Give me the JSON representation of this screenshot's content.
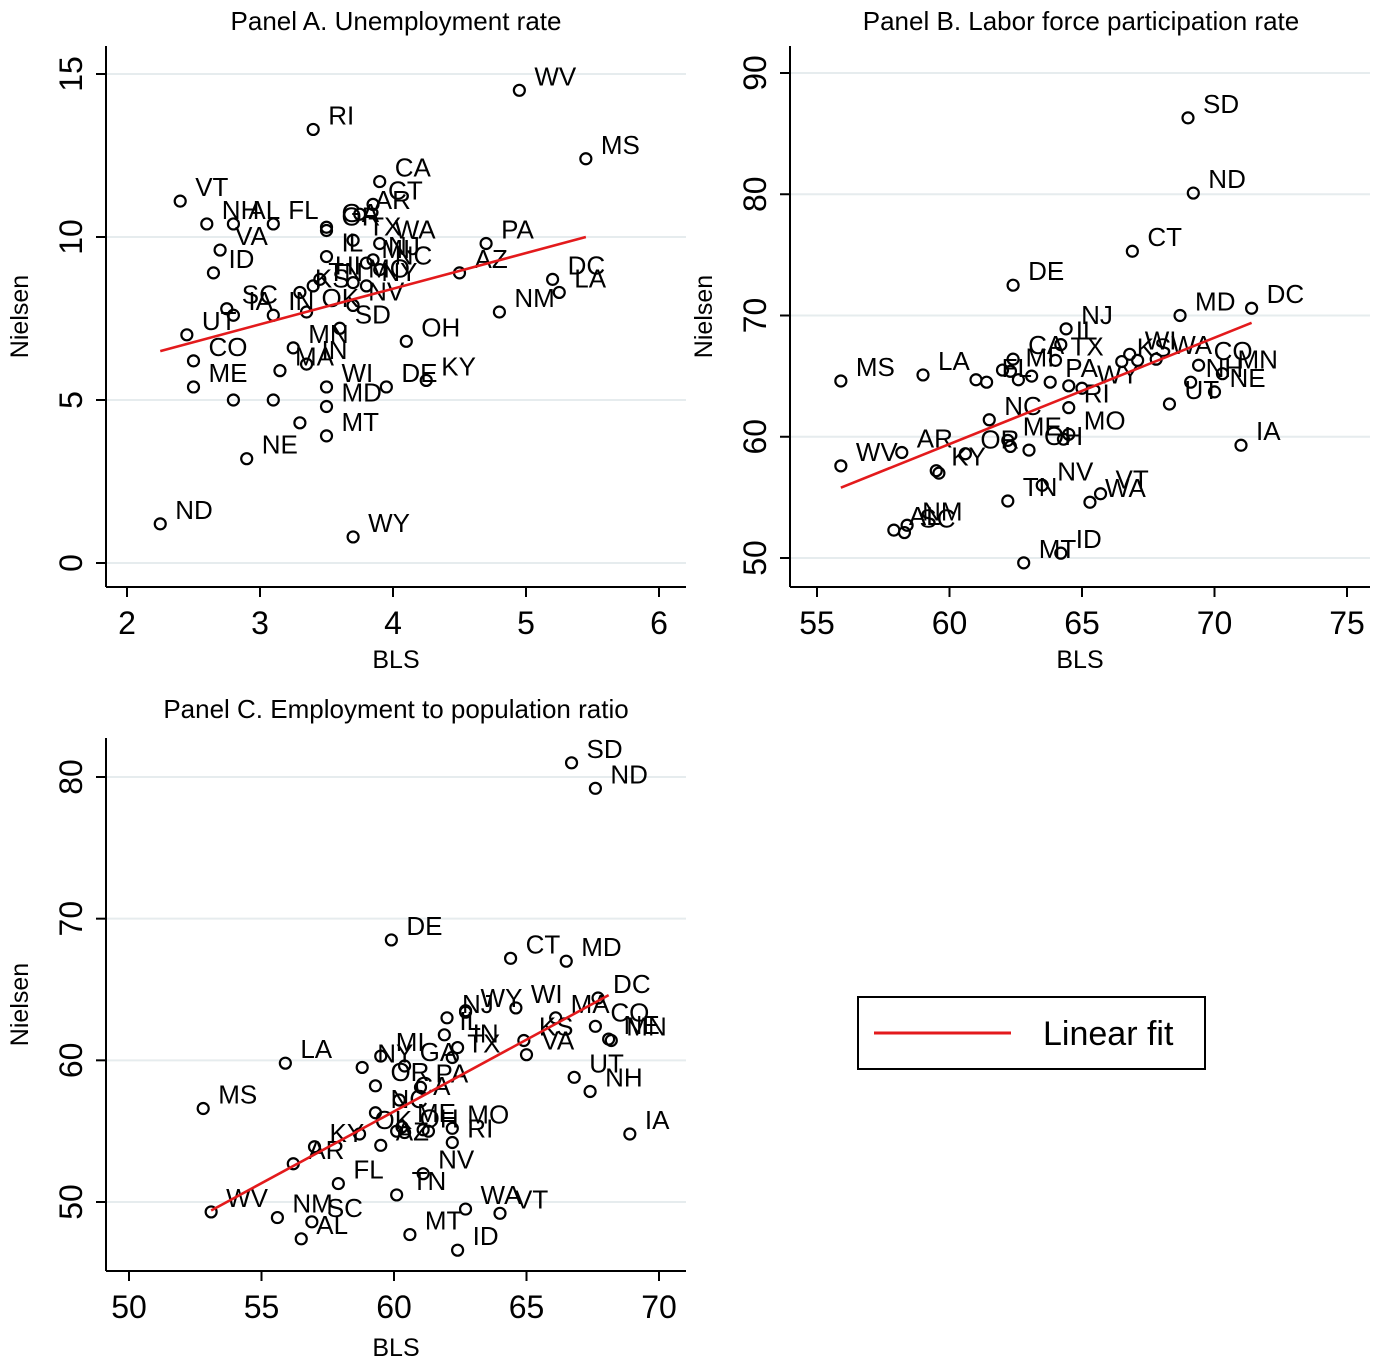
{
  "chart_data": [
    {
      "type": "scatter",
      "title": "Panel A. Unemployment rate",
      "xlabel": "BLS",
      "ylabel": "Nielsen",
      "xlim": [
        2,
        6
      ],
      "ylim": [
        0,
        15
      ],
      "xticks": [
        "2",
        "3",
        "4",
        "5",
        "6"
      ],
      "yticks": [
        "0",
        "5",
        "10",
        "15"
      ],
      "grid": "horizontal",
      "points": [
        {
          "label": "WV",
          "x": 4.95,
          "y": 14.5
        },
        {
          "label": "RI",
          "x": 3.4,
          "y": 13.3
        },
        {
          "label": "MS",
          "x": 5.45,
          "y": 12.4
        },
        {
          "label": "CA",
          "x": 3.9,
          "y": 11.7
        },
        {
          "label": "VT",
          "x": 2.4,
          "y": 11.1
        },
        {
          "label": "CT",
          "x": 3.85,
          "y": 11.0
        },
        {
          "label": "NH",
          "x": 2.6,
          "y": 10.4
        },
        {
          "label": "FL",
          "x": 3.1,
          "y": 10.4
        },
        {
          "label": "GA",
          "x": 3.5,
          "y": 10.3
        },
        {
          "label": "AR",
          "x": 3.75,
          "y": 10.7
        },
        {
          "label": "AL",
          "x": 2.8,
          "y": 10.4
        },
        {
          "label": "OR",
          "x": 3.5,
          "y": 10.2
        },
        {
          "label": "PA",
          "x": 4.7,
          "y": 9.8
        },
        {
          "label": "TX",
          "x": 3.7,
          "y": 9.9
        },
        {
          "label": "WA",
          "x": 3.9,
          "y": 9.8
        },
        {
          "label": "VA",
          "x": 2.7,
          "y": 9.6
        },
        {
          "label": "AZ",
          "x": 4.5,
          "y": 8.9
        },
        {
          "label": "IL",
          "x": 3.5,
          "y": 9.4
        },
        {
          "label": "NJ",
          "x": 3.85,
          "y": 9.3
        },
        {
          "label": "MI",
          "x": 3.8,
          "y": 9.2
        },
        {
          "label": "NC",
          "x": 3.9,
          "y": 9.0
        },
        {
          "label": "DC",
          "x": 5.2,
          "y": 8.7
        },
        {
          "label": "LA",
          "x": 5.25,
          "y": 8.3
        },
        {
          "label": "NY",
          "x": 3.8,
          "y": 8.5
        },
        {
          "label": "MO",
          "x": 3.7,
          "y": 8.6
        },
        {
          "label": "ID",
          "x": 2.65,
          "y": 8.9
        },
        {
          "label": "KS",
          "x": 3.3,
          "y": 8.3
        },
        {
          "label": "HI",
          "x": 3.45,
          "y": 8.7
        },
        {
          "label": "NM",
          "x": 4.8,
          "y": 7.7
        },
        {
          "label": "IA",
          "x": 2.8,
          "y": 7.6
        },
        {
          "label": "SC",
          "x": 2.75,
          "y": 7.8
        },
        {
          "label": "TN",
          "x": 3.4,
          "y": 8.5
        },
        {
          "label": "IN",
          "x": 3.1,
          "y": 7.6
        },
        {
          "label": "NV",
          "x": 3.7,
          "y": 7.9
        },
        {
          "label": "UT",
          "x": 2.45,
          "y": 7.0
        },
        {
          "label": "OK",
          "x": 3.35,
          "y": 7.7
        },
        {
          "label": "OH",
          "x": 4.1,
          "y": 6.8
        },
        {
          "label": "SD",
          "x": 3.6,
          "y": 7.2
        },
        {
          "label": "CO",
          "x": 2.5,
          "y": 6.2
        },
        {
          "label": "MN",
          "x": 3.25,
          "y": 6.6
        },
        {
          "label": "KY",
          "x": 4.25,
          "y": 5.6
        },
        {
          "label": "DE",
          "x": 3.95,
          "y": 5.4
        },
        {
          "label": "MA",
          "x": 3.15,
          "y": 5.9
        },
        {
          "label": "IN",
          "x": 3.35,
          "y": 6.1
        },
        {
          "label": "WI",
          "x": 3.5,
          "y": 5.4
        },
        {
          "label": "MD",
          "x": 3.5,
          "y": 4.8
        },
        {
          "label": "ME",
          "x": 2.5,
          "y": 5.4
        },
        {
          "label": "MT",
          "x": 3.5,
          "y": 3.9
        },
        {
          "label": "NE",
          "x": 2.9,
          "y": 3.2
        },
        {
          "label": "ND",
          "x": 2.25,
          "y": 1.2
        },
        {
          "label": "WY",
          "x": 3.7,
          "y": 0.8
        },
        {
          "label": "",
          "x": 2.8,
          "y": 5.0
        },
        {
          "label": "",
          "x": 3.1,
          "y": 5.0
        },
        {
          "label": "",
          "x": 3.3,
          "y": 4.3
        }
      ],
      "fit_line": {
        "name": "Linear fit",
        "x": [
          2.25,
          5.45
        ],
        "y": [
          6.5,
          10.0
        ]
      }
    },
    {
      "type": "scatter",
      "title": "Panel B. Labor force participation rate",
      "xlabel": "BLS",
      "ylabel": "Nielsen",
      "xlim": [
        55,
        75
      ],
      "ylim": [
        50,
        90
      ],
      "xticks": [
        "55",
        "60",
        "65",
        "70",
        "75"
      ],
      "yticks": [
        "50",
        "60",
        "70",
        "80",
        "90"
      ],
      "grid": "horizontal",
      "points": [
        {
          "label": "SD",
          "x": 69.0,
          "y": 86.3
        },
        {
          "label": "ND",
          "x": 69.2,
          "y": 80.1
        },
        {
          "label": "CT",
          "x": 66.9,
          "y": 75.3
        },
        {
          "label": "DE",
          "x": 62.4,
          "y": 72.5
        },
        {
          "label": "DC",
          "x": 71.4,
          "y": 70.6
        },
        {
          "label": "MD",
          "x": 68.7,
          "y": 70.0
        },
        {
          "label": "NJ",
          "x": 64.4,
          "y": 68.9
        },
        {
          "label": "IL",
          "x": 64.2,
          "y": 67.6
        },
        {
          "label": "CA",
          "x": 62.4,
          "y": 66.4
        },
        {
          "label": "TX",
          "x": 64.0,
          "y": 66.3
        },
        {
          "label": "WI",
          "x": 66.8,
          "y": 66.8
        },
        {
          "label": "WA",
          "x": 67.8,
          "y": 66.4
        },
        {
          "label": "CO",
          "x": 69.4,
          "y": 65.9
        },
        {
          "label": "MN",
          "x": 70.3,
          "y": 65.2
        },
        {
          "label": "NH",
          "x": 69.1,
          "y": 64.5
        },
        {
          "label": "NE",
          "x": 70.0,
          "y": 63.7
        },
        {
          "label": "UT",
          "x": 68.3,
          "y": 62.7
        },
        {
          "label": "MS",
          "x": 55.9,
          "y": 64.6
        },
        {
          "label": "LA",
          "x": 59.0,
          "y": 65.1
        },
        {
          "label": "MI",
          "x": 62.3,
          "y": 65.4
        },
        {
          "label": "FL",
          "x": 61.4,
          "y": 64.5
        },
        {
          "label": "KS",
          "x": 66.5,
          "y": 66.2
        },
        {
          "label": "PA",
          "x": 63.8,
          "y": 64.5
        },
        {
          "label": "WY",
          "x": 65.0,
          "y": 64.0
        },
        {
          "label": "RI",
          "x": 64.5,
          "y": 62.4
        },
        {
          "label": "NC",
          "x": 61.5,
          "y": 61.4
        },
        {
          "label": "MO",
          "x": 64.5,
          "y": 60.2
        },
        {
          "label": "ME",
          "x": 62.2,
          "y": 59.7
        },
        {
          "label": "OH",
          "x": 63.0,
          "y": 58.9
        },
        {
          "label": "OR",
          "x": 60.6,
          "y": 58.6
        },
        {
          "label": "AR",
          "x": 58.2,
          "y": 58.7
        },
        {
          "label": "WV",
          "x": 55.9,
          "y": 57.6
        },
        {
          "label": "KY",
          "x": 59.5,
          "y": 57.2
        },
        {
          "label": "IA",
          "x": 71.0,
          "y": 59.3
        },
        {
          "label": "NV",
          "x": 63.5,
          "y": 56.0
        },
        {
          "label": "VT",
          "x": 65.7,
          "y": 55.3
        },
        {
          "label": "TN",
          "x": 62.2,
          "y": 54.7
        },
        {
          "label": "WA",
          "x": 65.3,
          "y": 54.6
        },
        {
          "label": "NM",
          "x": 58.4,
          "y": 52.7
        },
        {
          "label": "AL",
          "x": 57.9,
          "y": 52.3
        },
        {
          "label": "SC",
          "x": 58.3,
          "y": 52.1
        },
        {
          "label": "ID",
          "x": 64.2,
          "y": 50.4
        },
        {
          "label": "MT",
          "x": 62.8,
          "y": 49.6
        },
        {
          "label": "",
          "x": 61.0,
          "y": 64.7
        },
        {
          "label": "",
          "x": 62.0,
          "y": 65.5
        },
        {
          "label": "",
          "x": 63.1,
          "y": 65.0
        },
        {
          "label": "",
          "x": 62.6,
          "y": 64.7
        },
        {
          "label": "",
          "x": 64.5,
          "y": 64.2
        },
        {
          "label": "",
          "x": 67.1,
          "y": 66.3
        },
        {
          "label": "",
          "x": 59.6,
          "y": 57.0
        },
        {
          "label": "",
          "x": 62.3,
          "y": 59.2
        },
        {
          "label": "",
          "x": 64.3,
          "y": 59.8
        }
      ],
      "fit_line": {
        "name": "Linear fit",
        "x": [
          55.9,
          71.4
        ],
        "y": [
          55.8,
          69.4
        ]
      }
    },
    {
      "type": "scatter",
      "title": "Panel C. Employment to population ratio",
      "xlabel": "BLS",
      "ylabel": "Nielsen",
      "xlim": [
        50,
        70
      ],
      "ylim": [
        50,
        80
      ],
      "xticks": [
        "50",
        "55",
        "60",
        "65",
        "70"
      ],
      "yticks": [
        "50",
        "60",
        "70",
        "80"
      ],
      "grid": "horizontal",
      "points": [
        {
          "label": "SD",
          "x": 66.7,
          "y": 81.0
        },
        {
          "label": "ND",
          "x": 67.6,
          "y": 79.2
        },
        {
          "label": "DE",
          "x": 59.9,
          "y": 68.5
        },
        {
          "label": "CT",
          "x": 64.4,
          "y": 67.2
        },
        {
          "label": "MD",
          "x": 66.5,
          "y": 67.0
        },
        {
          "label": "DC",
          "x": 67.7,
          "y": 64.4
        },
        {
          "label": "WI",
          "x": 64.6,
          "y": 63.7
        },
        {
          "label": "WY",
          "x": 62.7,
          "y": 63.4
        },
        {
          "label": "NJ",
          "x": 62.0,
          "y": 63.0
        },
        {
          "label": "MA",
          "x": 66.1,
          "y": 63.0
        },
        {
          "label": "CO",
          "x": 67.6,
          "y": 62.4
        },
        {
          "label": "NE",
          "x": 68.1,
          "y": 61.5
        },
        {
          "label": "MN",
          "x": 68.2,
          "y": 61.4
        },
        {
          "label": "IL",
          "x": 61.9,
          "y": 61.8
        },
        {
          "label": "KS",
          "x": 64.9,
          "y": 61.4
        },
        {
          "label": "IN",
          "x": 62.4,
          "y": 60.9
        },
        {
          "label": "VA",
          "x": 65.0,
          "y": 60.4
        },
        {
          "label": "TX",
          "x": 62.2,
          "y": 60.2
        },
        {
          "label": "UT",
          "x": 66.8,
          "y": 58.8
        },
        {
          "label": "NH",
          "x": 67.4,
          "y": 57.8
        },
        {
          "label": "LA",
          "x": 55.9,
          "y": 59.8
        },
        {
          "label": "MI",
          "x": 59.5,
          "y": 60.3
        },
        {
          "label": "NY",
          "x": 58.8,
          "y": 59.5
        },
        {
          "label": "GA",
          "x": 60.4,
          "y": 59.6
        },
        {
          "label": "PA",
          "x": 61.0,
          "y": 58.1
        },
        {
          "label": "OR",
          "x": 59.3,
          "y": 58.2
        },
        {
          "label": "CA",
          "x": 60.2,
          "y": 57.2
        },
        {
          "label": "MS",
          "x": 52.8,
          "y": 56.6
        },
        {
          "label": "NC",
          "x": 59.3,
          "y": 56.3
        },
        {
          "label": "OK",
          "x": 58.7,
          "y": 54.8
        },
        {
          "label": "ME",
          "x": 60.3,
          "y": 55.3
        },
        {
          "label": "OH",
          "x": 60.4,
          "y": 54.9
        },
        {
          "label": "MO",
          "x": 62.2,
          "y": 55.2
        },
        {
          "label": "KY",
          "x": 57.0,
          "y": 53.9
        },
        {
          "label": "AZ",
          "x": 59.5,
          "y": 54.0
        },
        {
          "label": "RI",
          "x": 62.2,
          "y": 54.2
        },
        {
          "label": "IA",
          "x": 68.9,
          "y": 54.8
        },
        {
          "label": "AR",
          "x": 56.2,
          "y": 52.7
        },
        {
          "label": "FL",
          "x": 57.9,
          "y": 51.3
        },
        {
          "label": "NV",
          "x": 61.1,
          "y": 52.0
        },
        {
          "label": "TN",
          "x": 60.1,
          "y": 50.5
        },
        {
          "label": "WA",
          "x": 62.7,
          "y": 49.5
        },
        {
          "label": "VT",
          "x": 64.0,
          "y": 49.2
        },
        {
          "label": "WV",
          "x": 53.1,
          "y": 49.3
        },
        {
          "label": "NM",
          "x": 55.6,
          "y": 48.9
        },
        {
          "label": "SC",
          "x": 56.9,
          "y": 48.6
        },
        {
          "label": "AL",
          "x": 56.5,
          "y": 47.4
        },
        {
          "label": "MT",
          "x": 60.6,
          "y": 47.7
        },
        {
          "label": "ID",
          "x": 62.4,
          "y": 46.6
        },
        {
          "label": "",
          "x": 62.7,
          "y": 63.5
        },
        {
          "label": "",
          "x": 60.1,
          "y": 55.0
        },
        {
          "label": "",
          "x": 61.1,
          "y": 55.1
        },
        {
          "label": "",
          "x": 61.3,
          "y": 55.0
        }
      ],
      "fit_line": {
        "name": "Linear fit",
        "x": [
          53.1,
          68.1
        ],
        "y": [
          49.4,
          64.6
        ]
      }
    }
  ],
  "legend": {
    "label": "Linear fit",
    "color": "#e31a1c"
  },
  "colors": {
    "marker": "#000000",
    "fit": "#e31a1c",
    "grid": "#e6ecee"
  }
}
